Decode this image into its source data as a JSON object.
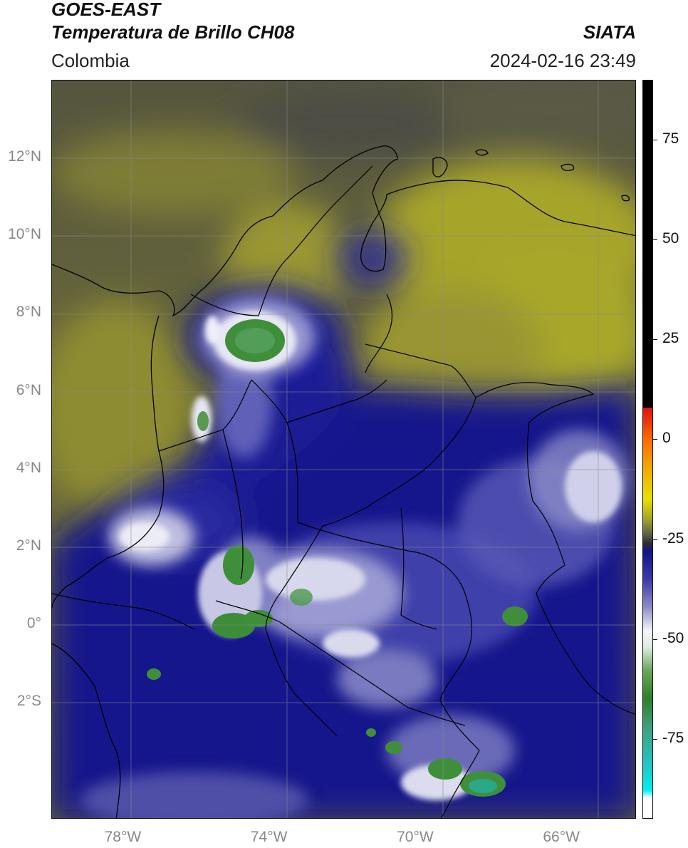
{
  "header": {
    "satellite": "GOES-EAST",
    "product": "Temperatura de Brillo CH08",
    "source": "SIATA",
    "region": "Colombia",
    "datetime": "2024-02-16 23:49"
  },
  "map": {
    "lon_range": [
      -80,
      -64
    ],
    "lat_range": [
      -5,
      14
    ],
    "lon_ticks": [
      {
        "value": -78,
        "label": "78°W"
      },
      {
        "value": -74,
        "label": "74°W"
      },
      {
        "value": -70,
        "label": "70°W"
      },
      {
        "value": -66,
        "label": "66°W"
      }
    ],
    "lat_ticks": [
      {
        "value": 12,
        "label": "12°N"
      },
      {
        "value": 10,
        "label": "10°N"
      },
      {
        "value": 8,
        "label": "8°N"
      },
      {
        "value": 6,
        "label": "6°N"
      },
      {
        "value": 4,
        "label": "4°N"
      },
      {
        "value": 2,
        "label": "2°N"
      },
      {
        "value": 0,
        "label": "0°"
      },
      {
        "value": -2,
        "label": "2°S"
      }
    ],
    "colors": {
      "warm_olive": "#a3a12a",
      "dry_gray": "#5d5d4a",
      "deep_blue": "#16158c",
      "mid_blue": "#3a3aa8",
      "light_cloud": "#d8d8ec",
      "cold_green": "#3f8f3a",
      "very_cold_teal": "#2aa88a"
    }
  },
  "colorbar": {
    "range": [
      -95,
      90
    ],
    "ticks": [
      {
        "value": 75,
        "label": "75"
      },
      {
        "value": 50,
        "label": "50"
      },
      {
        "value": 25,
        "label": "25"
      },
      {
        "value": 0,
        "label": "0"
      },
      {
        "value": -25,
        "label": "-25"
      },
      {
        "value": -50,
        "label": "-50"
      },
      {
        "value": -75,
        "label": "-75"
      }
    ]
  }
}
